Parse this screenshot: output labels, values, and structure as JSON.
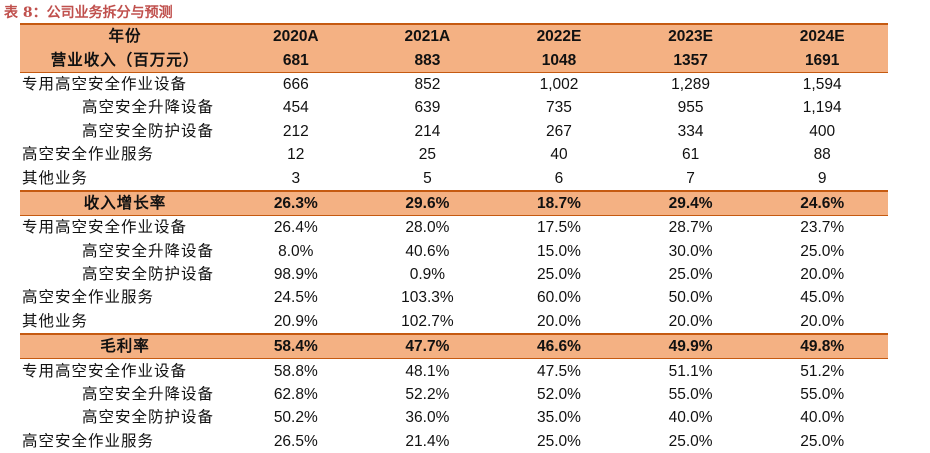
{
  "caption": "表 8：公司业务拆分与预测",
  "header": {
    "label": "年份",
    "years": [
      "2020A",
      "2021A",
      "2022E",
      "2023E",
      "2024E"
    ]
  },
  "sections": [
    {
      "title": "营业收入（百万元）",
      "values": [
        "681",
        "883",
        "1048",
        "1357",
        "1691"
      ],
      "rows": [
        {
          "label": "专用高空安全作业设备",
          "level": 0,
          "values": [
            "666",
            "852",
            "1,002",
            "1,289",
            "1,594"
          ]
        },
        {
          "label": "高空安全升降设备",
          "level": 1,
          "values": [
            "454",
            "639",
            "735",
            "955",
            "1,194"
          ]
        },
        {
          "label": "高空安全防护设备",
          "level": 1,
          "values": [
            "212",
            "214",
            "267",
            "334",
            "400"
          ]
        },
        {
          "label": "高空安全作业服务",
          "level": 0,
          "values": [
            "12",
            "25",
            "40",
            "61",
            "88"
          ]
        },
        {
          "label": "其他业务",
          "level": 0,
          "values": [
            "3",
            "5",
            "6",
            "7",
            "9"
          ]
        }
      ]
    },
    {
      "title": "收入增长率",
      "values": [
        "26.3%",
        "29.6%",
        "18.7%",
        "29.4%",
        "24.6%"
      ],
      "rows": [
        {
          "label": "专用高空安全作业设备",
          "level": 0,
          "values": [
            "26.4%",
            "28.0%",
            "17.5%",
            "28.7%",
            "23.7%"
          ]
        },
        {
          "label": "高空安全升降设备",
          "level": 1,
          "values": [
            "8.0%",
            "40.6%",
            "15.0%",
            "30.0%",
            "25.0%"
          ]
        },
        {
          "label": "高空安全防护设备",
          "level": 1,
          "values": [
            "98.9%",
            "0.9%",
            "25.0%",
            "25.0%",
            "20.0%"
          ]
        },
        {
          "label": "高空安全作业服务",
          "level": 0,
          "values": [
            "24.5%",
            "103.3%",
            "60.0%",
            "50.0%",
            "45.0%"
          ]
        },
        {
          "label": "其他业务",
          "level": 0,
          "values": [
            "20.9%",
            "102.7%",
            "20.0%",
            "20.0%",
            "20.0%"
          ]
        }
      ]
    },
    {
      "title": "毛利率",
      "values": [
        "58.4%",
        "47.7%",
        "46.6%",
        "49.9%",
        "49.8%"
      ],
      "rows": [
        {
          "label": "专用高空安全作业设备",
          "level": 0,
          "values": [
            "58.8%",
            "48.1%",
            "47.5%",
            "51.1%",
            "51.2%"
          ]
        },
        {
          "label": "高空安全升降设备",
          "level": 1,
          "values": [
            "62.8%",
            "52.2%",
            "52.0%",
            "55.0%",
            "55.0%"
          ]
        },
        {
          "label": "高空安全防护设备",
          "level": 1,
          "values": [
            "50.2%",
            "36.0%",
            "35.0%",
            "40.0%",
            "40.0%"
          ]
        },
        {
          "label": "高空安全作业服务",
          "level": 0,
          "values": [
            "26.5%",
            "21.4%",
            "25.0%",
            "25.0%",
            "25.0%"
          ]
        }
      ]
    }
  ]
}
